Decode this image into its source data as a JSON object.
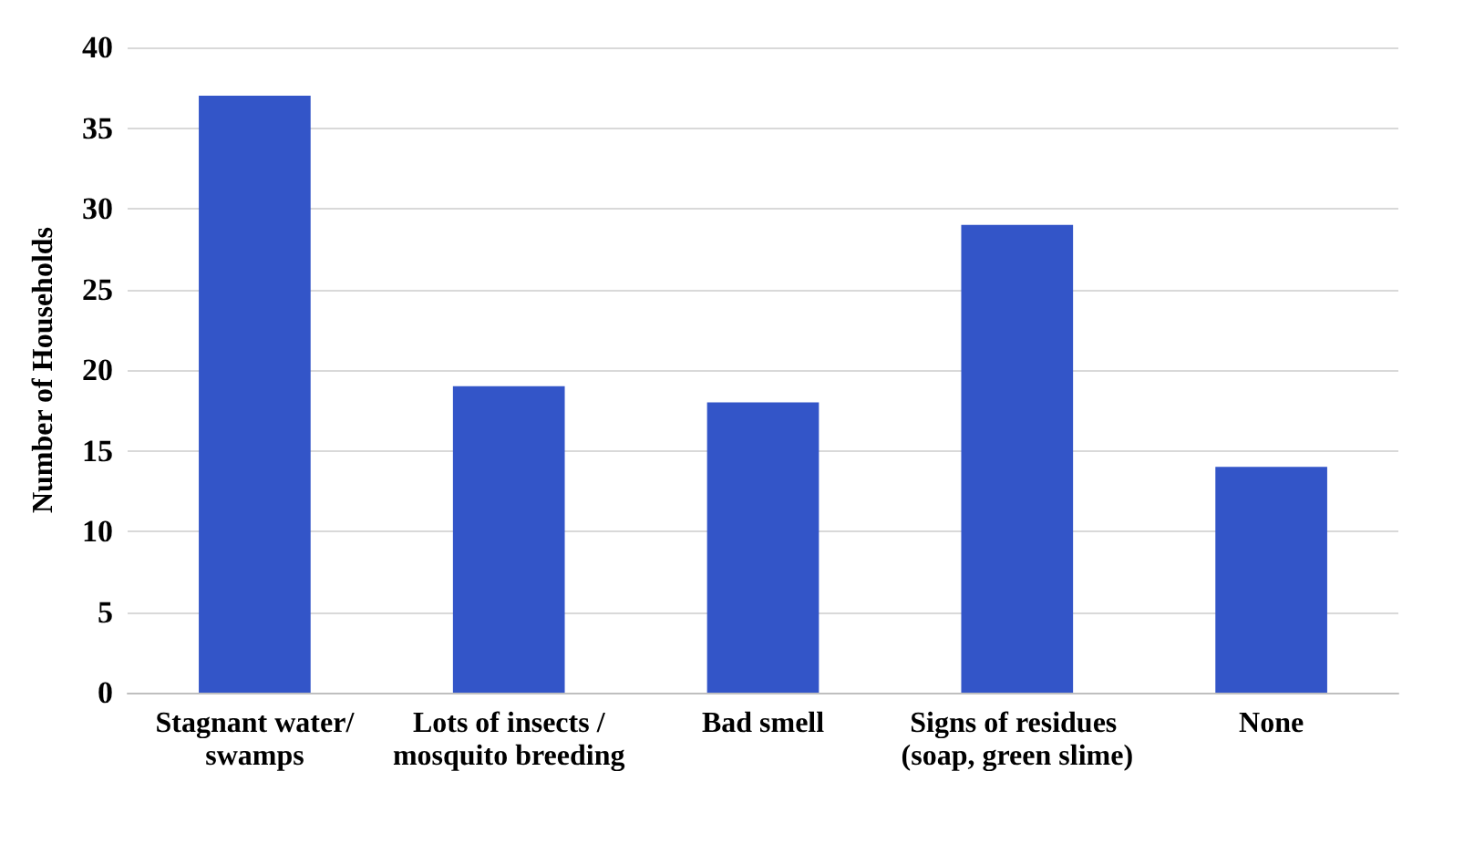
{
  "chart_data": {
    "type": "bar",
    "ylabel": "Number of Households",
    "categories": [
      "Stagnant water/swamps",
      "Lots of insects /mosquito breeding",
      "Bad smell",
      "Signs of residues (soap, green slime)",
      "None"
    ],
    "values": [
      37,
      19,
      18,
      29,
      14
    ],
    "color": "#3355c8",
    "ylim": [
      0,
      40
    ],
    "yticks": [
      0,
      5,
      10,
      15,
      20,
      25,
      30,
      35,
      40
    ],
    "grid": "y"
  }
}
